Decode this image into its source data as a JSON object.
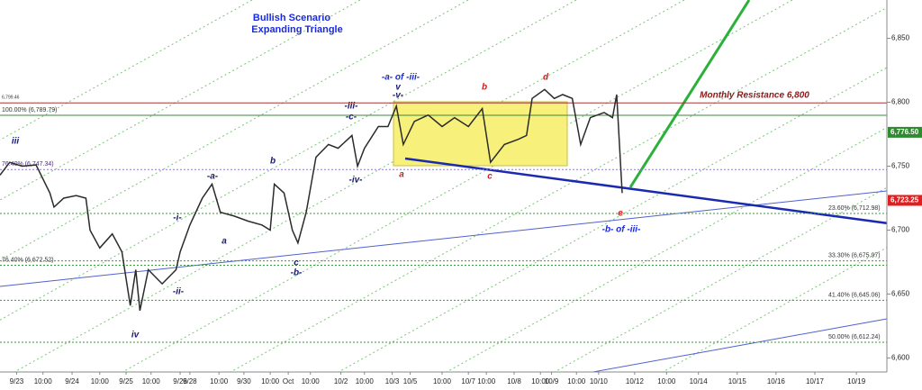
{
  "chart_data": {
    "type": "line",
    "title": "Bullish Scenario",
    "subtitle": "Expanding Triangle",
    "xlim": [
      0,
      64
    ],
    "ylim": [
      6589,
      6880
    ],
    "xticks": [
      {
        "value": 1.2,
        "label": "9/23"
      },
      {
        "value": 3.1,
        "label": "10:00"
      },
      {
        "value": 5.2,
        "label": "9/24"
      },
      {
        "value": 7.2,
        "label": "10:00"
      },
      {
        "value": 9.1,
        "label": "9/25"
      },
      {
        "value": 10.9,
        "label": "10:00"
      },
      {
        "value": 13,
        "label": "9/26"
      },
      {
        "value": 13.7,
        "label": "9/28"
      },
      {
        "value": 15.8,
        "label": "10:00"
      },
      {
        "value": 17.6,
        "label": "9/30"
      },
      {
        "value": 19.5,
        "label": "10:00"
      },
      {
        "value": 20.8,
        "label": "Oct"
      },
      {
        "value": 22.4,
        "label": "10:00"
      },
      {
        "value": 24.6,
        "label": "10/2"
      },
      {
        "value": 26.3,
        "label": "10:00"
      },
      {
        "value": 28.3,
        "label": "10/3"
      },
      {
        "value": 29.6,
        "label": "10/5"
      },
      {
        "value": 31.9,
        "label": "10:00"
      },
      {
        "value": 33.8,
        "label": "10/7"
      },
      {
        "value": 35.1,
        "label": "10:00"
      },
      {
        "value": 37.1,
        "label": "10/8"
      },
      {
        "value": 39,
        "label": "10:00"
      },
      {
        "value": 39.8,
        "label": "10/9"
      },
      {
        "value": 41.6,
        "label": "10:00"
      },
      {
        "value": 43.2,
        "label": "10/10"
      },
      {
        "value": 45.8,
        "label": "10/12"
      },
      {
        "value": 48.1,
        "label": "10:00"
      },
      {
        "value": 50.4,
        "label": "10/14"
      },
      {
        "value": 53.2,
        "label": "10/15"
      },
      {
        "value": 56,
        "label": "10/16"
      },
      {
        "value": 58.8,
        "label": "10/17"
      },
      {
        "value": 61.8,
        "label": "10/19"
      }
    ],
    "yticks": [
      {
        "value": 6600,
        "label": "6,600"
      },
      {
        "value": 6650,
        "label": "6,650"
      },
      {
        "value": 6700,
        "label": "6,700"
      },
      {
        "value": 6750,
        "label": "6,750"
      },
      {
        "value": 6800,
        "label": "6,800"
      },
      {
        "value": 6850,
        "label": "6,850"
      }
    ],
    "series": [
      {
        "color": "#2b2b2b",
        "x": [
          0,
          0.7,
          1.6,
          2.6,
          3.6,
          3.9,
          4.6,
          5.5,
          6.2,
          6.5,
          7.2,
          8.1,
          8.8,
          9.4,
          9.8,
          10.1,
          10.7,
          11.7,
          12.7,
          13,
          13.7,
          14.6,
          15.3,
          15.9,
          16.9,
          17.9,
          18.9,
          19.5,
          19.8,
          20.5,
          21.1,
          21.5,
          22.1,
          22.8,
          23.7,
          24.4,
          25.4,
          25.8,
          26.3,
          27.3,
          28,
          28.6,
          29.1,
          29.9,
          30.9,
          31.9,
          32.8,
          33.8,
          34.8,
          35.4,
          36.4,
          37.4,
          38,
          38.4,
          39.3,
          40,
          40.6,
          41.3,
          41.9,
          42.6,
          43.6,
          44.2,
          44.5,
          44.9
        ],
        "values": [
          6743,
          6753,
          6750,
          6751,
          6729,
          6718,
          6725,
          6727,
          6725,
          6700,
          6686,
          6697,
          6683,
          6641,
          6669,
          6637,
          6669,
          6658,
          6669,
          6683,
          6704,
          6725,
          6736,
          6714,
          6711,
          6707,
          6704,
          6700,
          6736,
          6729,
          6700,
          6690,
          6714,
          6757,
          6767,
          6764,
          6774,
          6750,
          6764,
          6781,
          6781,
          6797,
          6767,
          6785,
          6790,
          6781,
          6788,
          6781,
          6795,
          6753,
          6767,
          6771,
          6774,
          6803,
          6810,
          6803,
          6806,
          6803,
          6767,
          6788,
          6792,
          6788,
          6806,
          6729
        ]
      }
    ],
    "levels": [
      {
        "value": 6799.46,
        "label": "6,799.46",
        "color": "#a33"
      },
      {
        "value": 6789.79,
        "label": "100.00% (6,789.79)",
        "color": "#3a8a3a"
      },
      {
        "value": 6747.34,
        "label": "76.40% (6,747.34)",
        "color": "#8a7ad0"
      },
      {
        "value": 6712.98,
        "label": "23.60% (6,712.98)",
        "color": "#3a9a3a"
      },
      {
        "value": 6672.52,
        "label": "76.40% (6,672.52)",
        "color": "#3a9a3a"
      },
      {
        "value": 6675.97,
        "label": "33.30% (6,675.97)",
        "color": "#3a9a3a"
      },
      {
        "value": 6645.06,
        "label": "41.40% (6,645.06)",
        "color": "#3a9a3a"
      },
      {
        "value": 6612.24,
        "label": "50.00% (6,612.24)",
        "color": "#3a9a3a"
      }
    ],
    "price_tags": [
      {
        "value": 6776.5,
        "label": "6,776.50",
        "color": "#2e8b2e"
      },
      {
        "value": 6723.25,
        "label": "6,723.25",
        "color": "#e02020"
      }
    ],
    "annotations": [
      "iii",
      "-a-",
      "b",
      "a",
      "-i-",
      "-ii-",
      "iv",
      "c",
      "-b-",
      "-iii-",
      "-c-",
      "-iv-",
      "-a- of -iii-",
      "v",
      "-v-",
      "a",
      "b",
      "c",
      "d",
      "e",
      "-b- of -iii-",
      "Monthly Resistance 6,800"
    ]
  }
}
